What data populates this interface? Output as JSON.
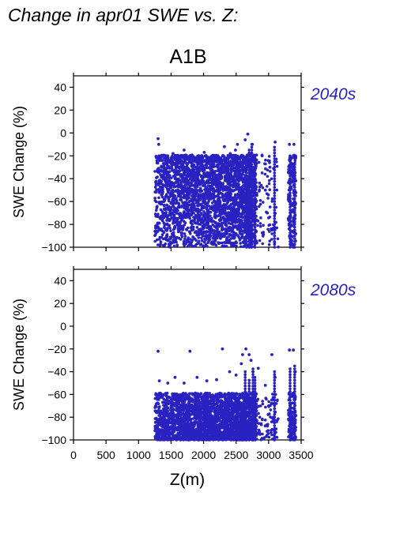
{
  "figure": {
    "heading": "Change in apr01 SWE vs. Z:",
    "scenario": "A1B",
    "xlabel": "Z(m)",
    "point_color": "#2a22c0",
    "label_color": "#2a22c0"
  },
  "chart_data": [
    {
      "type": "scatter",
      "period": "2040s",
      "title": "A1B",
      "ylabel": "SWE Change (%)",
      "xlabel": "",
      "xlim": [
        0,
        3500
      ],
      "ylim": [
        -100,
        50
      ],
      "yticks": [
        40,
        20,
        0,
        -20,
        -40,
        -60,
        -80,
        -100
      ],
      "xticks": [],
      "grid": false,
      "dense_range": {
        "x": [
          1250,
          3420
        ],
        "y": [
          -100,
          -5
        ]
      },
      "points": [
        [
          1300,
          -5
        ],
        [
          1310,
          -10
        ],
        [
          1420,
          -20
        ],
        [
          1530,
          -18
        ],
        [
          1620,
          -22
        ],
        [
          1700,
          -15
        ],
        [
          1820,
          -20
        ],
        [
          2010,
          -17
        ],
        [
          2200,
          -20
        ],
        [
          2320,
          -12
        ],
        [
          2410,
          -18
        ],
        [
          2490,
          -15
        ],
        [
          2520,
          -10
        ],
        [
          2590,
          -20
        ],
        [
          2640,
          -6
        ],
        [
          2680,
          -1
        ],
        [
          2720,
          -18
        ],
        [
          2750,
          -10
        ],
        [
          2790,
          -22
        ],
        [
          2900,
          -20
        ],
        [
          3020,
          -30
        ],
        [
          3100,
          -8
        ],
        [
          3320,
          -10
        ],
        [
          3390,
          -10
        ],
        [
          3410,
          -20
        ],
        [
          3330,
          -55
        ],
        [
          3350,
          -90
        ],
        [
          3380,
          -100
        ],
        [
          3400,
          -60
        ],
        [
          3090,
          -96
        ],
        [
          3050,
          -85
        ],
        [
          2980,
          -70
        ],
        [
          2950,
          -50
        ]
      ]
    },
    {
      "type": "scatter",
      "period": "2080s",
      "title": "",
      "ylabel": "SWE Change (%)",
      "xlabel": "Z(m)",
      "xlim": [
        0,
        3500
      ],
      "ylim": [
        -100,
        50
      ],
      "yticks": [
        40,
        20,
        0,
        -20,
        -40,
        -60,
        -80,
        -100
      ],
      "xticks": [
        0,
        500,
        1000,
        1500,
        2000,
        2500,
        3000,
        3500
      ],
      "grid": false,
      "dense_range": {
        "x": [
          1250,
          3420
        ],
        "y": [
          -100,
          -45
        ]
      },
      "points": [
        [
          1300,
          -22
        ],
        [
          1320,
          -48
        ],
        [
          1450,
          -50
        ],
        [
          1560,
          -45
        ],
        [
          1700,
          -50
        ],
        [
          1790,
          -22
        ],
        [
          1900,
          -45
        ],
        [
          2050,
          -48
        ],
        [
          2200,
          -47
        ],
        [
          2290,
          -20
        ],
        [
          2400,
          -40
        ],
        [
          2500,
          -43
        ],
        [
          2580,
          -33
        ],
        [
          2600,
          -25
        ],
        [
          2650,
          -20
        ],
        [
          2700,
          -25
        ],
        [
          2730,
          -30
        ],
        [
          2760,
          -40
        ],
        [
          2840,
          -37
        ],
        [
          2950,
          -52
        ],
        [
          3050,
          -25
        ],
        [
          3100,
          -45
        ],
        [
          3320,
          -21
        ],
        [
          3380,
          -21
        ],
        [
          3410,
          -40
        ],
        [
          3330,
          -70
        ],
        [
          3360,
          -95
        ],
        [
          3390,
          -60
        ],
        [
          3090,
          -92
        ],
        [
          3000,
          -70
        ]
      ]
    }
  ]
}
